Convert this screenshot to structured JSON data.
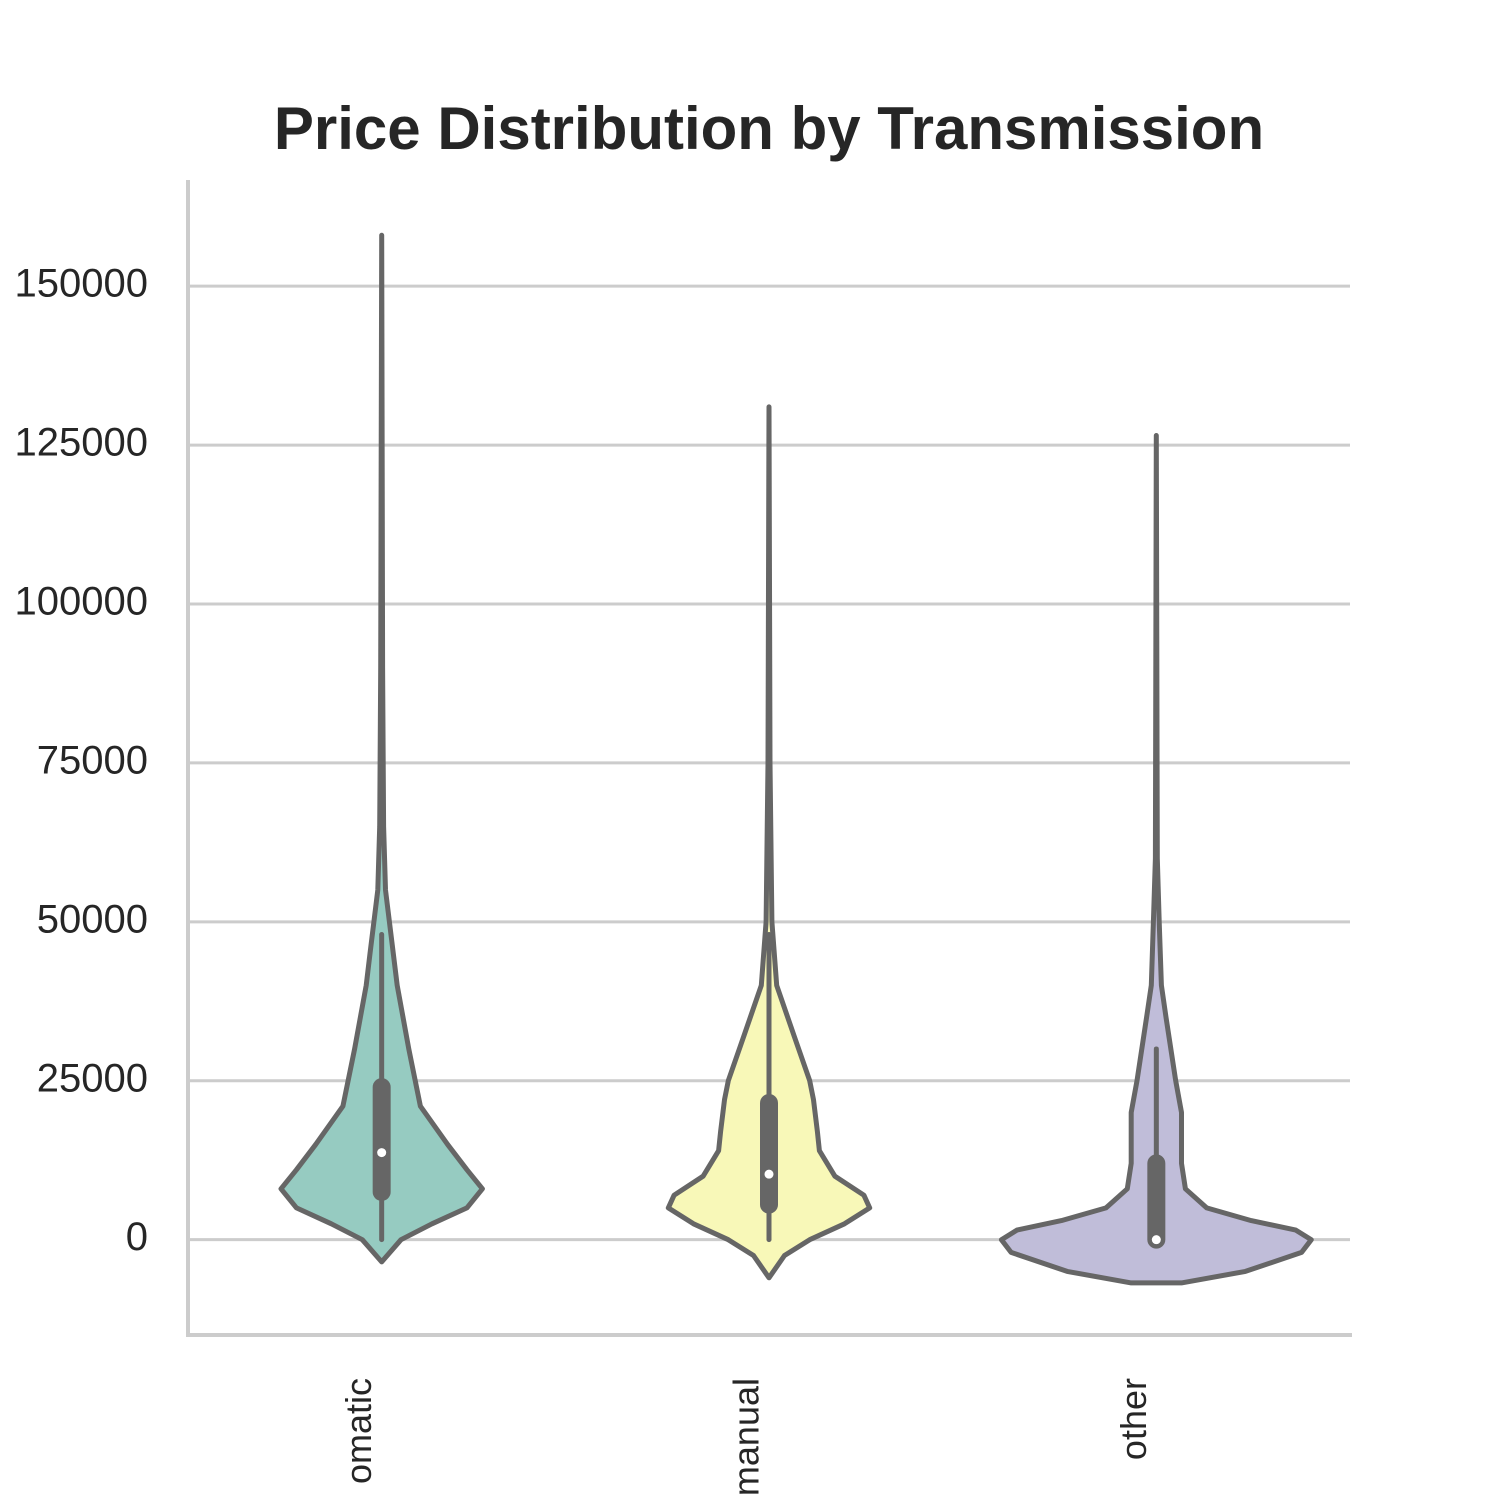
{
  "chart_data": {
    "type": "violin",
    "title": "Price Distribution by Transmission",
    "categories": [
      "omatic",
      "manual",
      "other"
    ],
    "ylim": [
      -15000,
      166700
    ],
    "yticks": [
      0,
      25000,
      50000,
      75000,
      100000,
      125000,
      150000
    ],
    "grid": true,
    "series": [
      {
        "name": "omatic",
        "color": "#96cbc1",
        "grid": [
          -3500,
          0,
          2500,
          5000,
          8000,
          11000,
          15000,
          21000,
          30000,
          40000,
          45000,
          55000,
          65000,
          90000,
          158000
        ],
        "density": [
          0,
          0.1,
          0.26,
          0.44,
          0.52,
          0.44,
          0.34,
          0.2,
          0.14,
          0.08,
          0.06,
          0.02,
          0.01,
          0.005,
          0
        ],
        "whisker_low": 0,
        "q1": 7500,
        "median": 13700,
        "q3": 24000,
        "whisker_high": 48000
      },
      {
        "name": "manual",
        "color": "#f8f8b8",
        "grid": [
          -6000,
          -2500,
          0,
          2500,
          5000,
          7000,
          10000,
          14000,
          17000,
          22000,
          25000,
          32000,
          40000,
          50000,
          75000,
          131000
        ],
        "density": [
          0,
          0.08,
          0.21,
          0.39,
          0.52,
          0.49,
          0.34,
          0.26,
          0.25,
          0.23,
          0.21,
          0.13,
          0.04,
          0.015,
          0.005,
          0
        ],
        "whisker_low": 0,
        "q1": 5500,
        "median": 10300,
        "q3": 21500,
        "whisker_high": 48000
      },
      {
        "name": "other",
        "color": "#c0bdd9",
        "grid": [
          -6800,
          -5000,
          -2000,
          0,
          1500,
          3000,
          5000,
          8000,
          12000,
          20000,
          25000,
          35000,
          40000,
          50000,
          60000,
          126500
        ],
        "density": [
          0.13,
          0.46,
          0.75,
          0.8,
          0.72,
          0.49,
          0.26,
          0.15,
          0.13,
          0.13,
          0.1,
          0.05,
          0.026,
          0.015,
          0.005,
          0
        ],
        "whisker_low": 0,
        "q1": 0,
        "median": 0,
        "q3": 12000,
        "whisker_high": 30000
      }
    ]
  }
}
